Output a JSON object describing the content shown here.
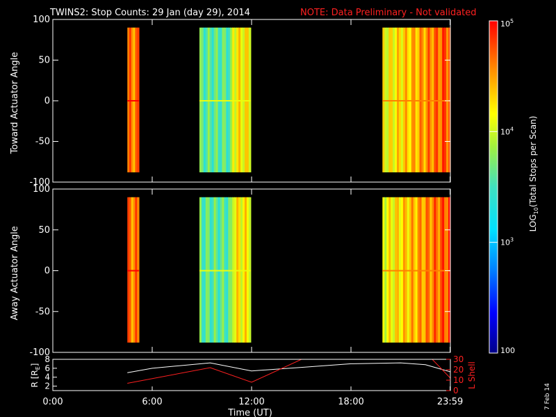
{
  "title": "TWINS2: Stop Counts: 29 Jan (day  29), 2014",
  "note": "NOTE: Data Preliminary - Not validated",
  "date_stamp": "7 Feb 14",
  "colors": {
    "background": "#000000",
    "axis": "#ffffff",
    "note": "#ff2020",
    "r_line": "#ffffff",
    "l_shell_line": "#ff2020"
  },
  "chart_data": [
    {
      "type": "heatmap",
      "name": "toward",
      "ylabel": "Toward Actuator Angle",
      "ylim": [
        -100,
        100
      ],
      "yticks": [
        "100",
        "50",
        "0",
        "-50",
        "-100"
      ],
      "xlim": [
        0,
        24
      ],
      "scale": "log",
      "zlim": [
        100,
        100000
      ],
      "blocks": [
        {
          "x": [
            4.5,
            5.2
          ],
          "y": [
            -88,
            90
          ],
          "level": 4.6
        },
        {
          "x": [
            8.85,
            11.95
          ],
          "y": [
            -88,
            90
          ],
          "level": 3.6
        },
        {
          "x": [
            19.9,
            24.0
          ],
          "y": [
            -88,
            90
          ],
          "level": 4.1
        }
      ]
    },
    {
      "type": "heatmap",
      "name": "away",
      "ylabel": "Away Actuator Angle",
      "ylim": [
        -100,
        100
      ],
      "yticks": [
        "100",
        "50",
        "0",
        "-50",
        "-100"
      ],
      "xlim": [
        0,
        24
      ],
      "scale": "log",
      "zlim": [
        100,
        100000
      ],
      "blocks": [
        {
          "x": [
            4.5,
            5.2
          ],
          "y": [
            -88,
            90
          ],
          "level": 4.6
        },
        {
          "x": [
            8.85,
            11.95
          ],
          "y": [
            -88,
            90
          ],
          "level": 3.6
        },
        {
          "x": [
            19.9,
            24.0
          ],
          "y": [
            -88,
            90
          ],
          "level": 4.1
        }
      ]
    },
    {
      "type": "line",
      "name": "orbit",
      "xlabel": "Time (UT)",
      "xticks": [
        "0:00",
        "6:00",
        "12:00",
        "18:00",
        "23:59"
      ],
      "xlim": [
        0,
        24
      ],
      "ylabel_left": "R [R",
      "ylabel_left_sub": "E",
      "ylabel_left_end": "]",
      "ylim_left": [
        1,
        8
      ],
      "yticks_left": [
        "8",
        "6",
        "4",
        "2"
      ],
      "ylabel_right": "L Shell",
      "ylim_right": [
        0,
        30
      ],
      "yticks_right": [
        "30",
        "20",
        "10",
        "0"
      ],
      "series": [
        {
          "axis": "left",
          "color": "#ffffff",
          "x": [
            4.5,
            6.0,
            9.5,
            12.0,
            15.0,
            18.0,
            21.0,
            22.5,
            24.0
          ],
          "y": [
            5.0,
            6.0,
            7.2,
            5.4,
            6.2,
            7.0,
            7.2,
            6.8,
            5.2
          ]
        },
        {
          "axis": "right",
          "color": "#ff2020",
          "x": [
            4.5,
            9.5,
            12.0,
            15.7
          ],
          "y": [
            7,
            22,
            8,
            35
          ]
        },
        {
          "axis": "right",
          "color": "#ff2020",
          "x": [
            22.6,
            24.0
          ],
          "y": [
            35,
            12
          ]
        }
      ]
    }
  ],
  "colorbar": {
    "label": "LOG",
    "label_sub": "10",
    "label_rest": "(Total Stops per Scan)",
    "ticks": [
      {
        "text": "10",
        "sup": "5",
        "value": 5
      },
      {
        "text": "10",
        "sup": "4",
        "value": 4
      },
      {
        "text": "10",
        "sup": "3",
        "value": 3
      },
      {
        "text": "100",
        "sup": "",
        "value": 2
      }
    ]
  }
}
